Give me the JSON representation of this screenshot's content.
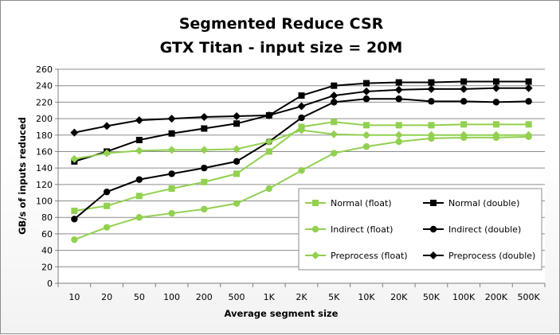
{
  "chart_data": {
    "type": "line",
    "title": [
      "Segmented Reduce CSR",
      "GTX Titan - input size = 20M"
    ],
    "xlabel": "Average segment size",
    "ylabel": "GB/s of inputs reduced",
    "ylim": [
      0,
      260
    ],
    "yticks": [
      0,
      20,
      40,
      60,
      80,
      100,
      120,
      140,
      160,
      180,
      200,
      220,
      240,
      260
    ],
    "grid": true,
    "legend": "inside-right-bottom",
    "categories": [
      "10",
      "20",
      "50",
      "100",
      "200",
      "500",
      "1K",
      "2K",
      "5K",
      "10K",
      "20K",
      "50K",
      "100K",
      "200K",
      "500K"
    ],
    "series": [
      {
        "name": "Normal (float)",
        "color": "#92d050",
        "marker": "square",
        "values": [
          88,
          94,
          106,
          115,
          123,
          133,
          160,
          190,
          196,
          192,
          192,
          192,
          193,
          193,
          193
        ]
      },
      {
        "name": "Normal (double)",
        "color": "#000000",
        "marker": "square",
        "values": [
          148,
          160,
          174,
          182,
          188,
          194,
          204,
          228,
          240,
          243,
          244,
          244,
          245,
          245,
          245
        ]
      },
      {
        "name": "Indirect (float)",
        "color": "#92d050",
        "marker": "circle",
        "values": [
          53,
          68,
          80,
          85,
          90,
          97,
          115,
          137,
          158,
          166,
          172,
          176,
          177,
          177,
          178
        ]
      },
      {
        "name": "Indirect (double)",
        "color": "#000000",
        "marker": "circle",
        "values": [
          78,
          111,
          126,
          133,
          140,
          148,
          172,
          201,
          220,
          224,
          224,
          221,
          221,
          220,
          221
        ]
      },
      {
        "name": "Preprocess (float)",
        "color": "#92d050",
        "marker": "diamond",
        "values": [
          151,
          158,
          161,
          162,
          162,
          163,
          172,
          186,
          181,
          180,
          180,
          180,
          180,
          180,
          180
        ]
      },
      {
        "name": "Preprocess (double)",
        "color": "#000000",
        "marker": "diamond",
        "values": [
          183,
          191,
          198,
          200,
          202,
          203,
          204,
          215,
          228,
          233,
          235,
          236,
          236,
          237,
          237
        ]
      }
    ]
  }
}
